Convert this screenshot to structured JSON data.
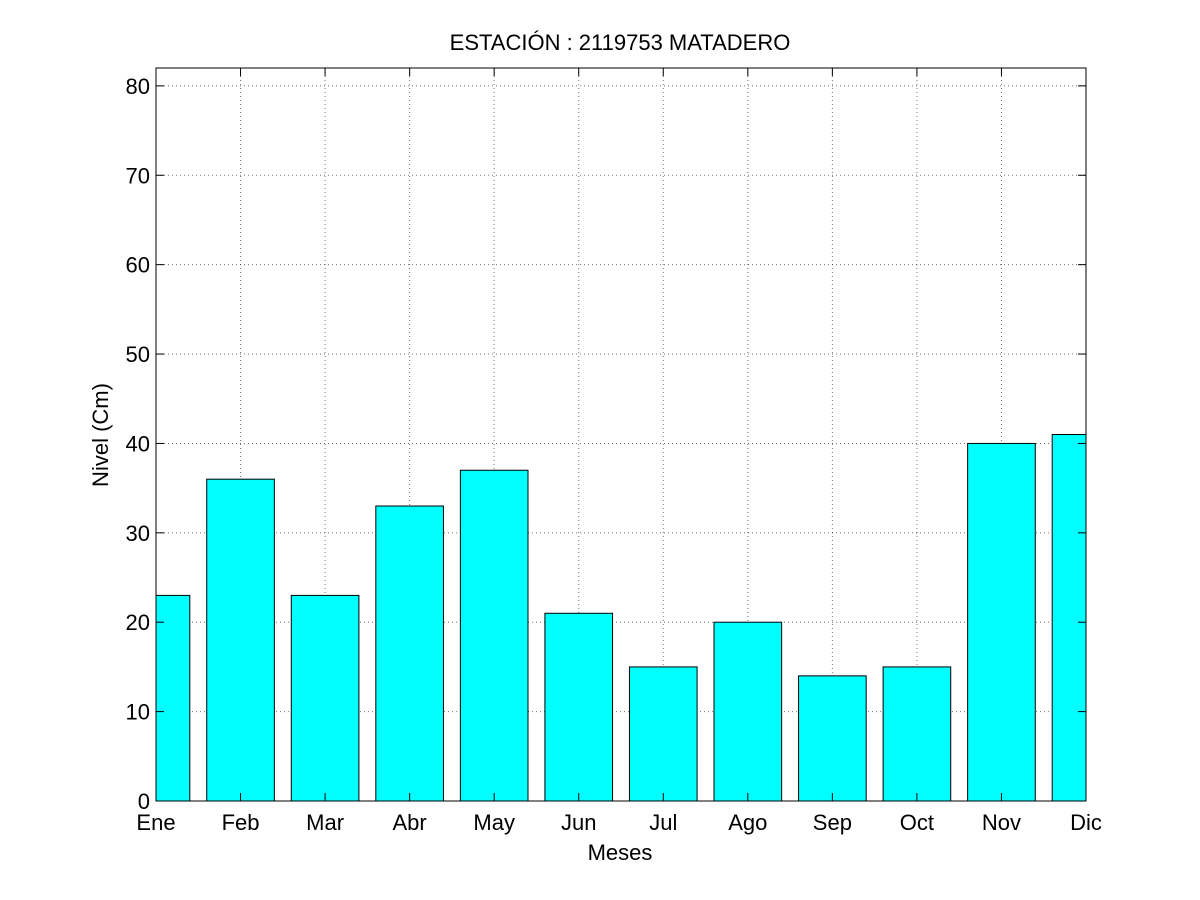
{
  "chart_data": {
    "type": "bar",
    "title": "ESTACIÓN :  2119753  MATADERO",
    "xlabel": "Meses",
    "ylabel": "Nivel (Cm)",
    "categories": [
      "Ene",
      "Feb",
      "Mar",
      "Abr",
      "May",
      "Jun",
      "Jul",
      "Ago",
      "Sep",
      "Oct",
      "Nov",
      "Dic"
    ],
    "values": [
      23,
      36,
      23,
      33,
      37,
      21,
      15,
      20,
      14,
      15,
      40,
      41
    ],
    "ylim": [
      0,
      82
    ],
    "yticks": [
      0,
      10,
      20,
      30,
      40,
      50,
      60,
      70,
      80
    ],
    "grid": true,
    "bar_color": "#00ffff"
  }
}
